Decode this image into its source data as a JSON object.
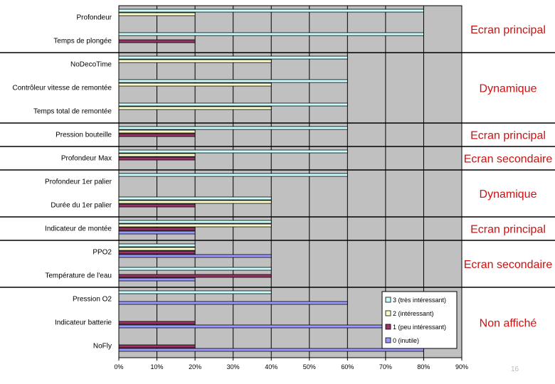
{
  "chart_data": {
    "type": "bar",
    "orientation": "horizontal",
    "categories": [
      "Profondeur",
      "Temps de plongée",
      "NoDecoTime",
      "Contrôleur vitesse de remontée",
      "Temps total de remontée",
      "Pression bouteille",
      "Profondeur Max",
      "Profondeur 1er palier",
      "Durée du 1er palier",
      "Indicateur de montée",
      "PPO2",
      "Température de l'eau",
      "Pression O2",
      "Indicateur batterie",
      "NoFly"
    ],
    "series": [
      {
        "name": "3 (très intéressant)",
        "color": "#ccffff",
        "values": [
          80,
          80,
          60,
          60,
          60,
          60,
          60,
          60,
          40,
          40,
          20,
          40,
          40,
          0,
          0
        ]
      },
      {
        "name": "2 (intéressant)",
        "color": "#ffffcc",
        "values": [
          20,
          0,
          40,
          40,
          40,
          20,
          20,
          0,
          40,
          40,
          20,
          0,
          0,
          0,
          0
        ]
      },
      {
        "name": "1 (peu intéressant)",
        "color": "#993366",
        "values": [
          0,
          20,
          0,
          0,
          0,
          20,
          20,
          0,
          20,
          20,
          20,
          40,
          0,
          20,
          20
        ]
      },
      {
        "name": "0 (inutile)",
        "color": "#9999ff",
        "values": [
          0,
          0,
          0,
          0,
          0,
          0,
          0,
          0,
          0,
          20,
          40,
          20,
          60,
          70,
          80
        ]
      }
    ],
    "xlim": [
      0,
      90
    ],
    "xticks": [
      "0%",
      "10%",
      "20%",
      "30%",
      "40%",
      "50%",
      "60%",
      "70%",
      "80%",
      "90%"
    ],
    "groups": [
      {
        "label": "Ecran principal",
        "from": 0,
        "to": 1
      },
      {
        "label": "Dynamique",
        "from": 2,
        "to": 4
      },
      {
        "label": "Ecran principal",
        "from": 5,
        "to": 5
      },
      {
        "label": "Ecran secondaire",
        "from": 6,
        "to": 6
      },
      {
        "label": "Dynamique",
        "from": 7,
        "to": 8
      },
      {
        "label": "Ecran principal",
        "from": 9,
        "to": 9
      },
      {
        "label": "Ecran secondaire",
        "from": 10,
        "to": 11
      },
      {
        "label": "Non affiché",
        "from": 12,
        "to": 14
      }
    ],
    "legend_position": "bottom-right",
    "plot_background": "#c0c0c0",
    "grid": true
  },
  "page_number": "16"
}
